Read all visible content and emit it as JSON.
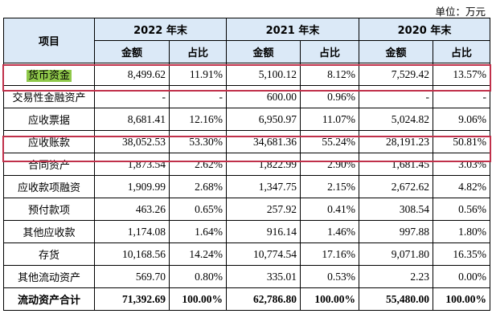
{
  "unit_label": "单位：万元",
  "header": {
    "item": "项目",
    "years": [
      "2022 年末",
      "2021 年末",
      "2020 年末"
    ],
    "amount": "金额",
    "ratio": "占比"
  },
  "rows": [
    {
      "label": "货币资金",
      "v": [
        "8,499.62",
        "11.91%",
        "5,100.12",
        "8.12%",
        "7,529.42",
        "13.57%"
      ]
    },
    {
      "label": "交易性金融资产",
      "v": [
        "-",
        "-",
        "600.00",
        "0.96%",
        "-",
        "-"
      ]
    },
    {
      "label": "应收票据",
      "v": [
        "8,681.41",
        "12.16%",
        "6,950.97",
        "11.07%",
        "5,024.82",
        "9.06%"
      ]
    },
    {
      "label": "应收账款",
      "v": [
        "38,052.53",
        "53.30%",
        "34,681.36",
        "55.24%",
        "28,191.23",
        "50.81%"
      ]
    },
    {
      "label": "合同资产",
      "v": [
        "1,873.54",
        "2.62%",
        "1,822.99",
        "2.90%",
        "1,681.45",
        "3.03%"
      ]
    },
    {
      "label": "应收款项融资",
      "v": [
        "1,909.99",
        "2.68%",
        "1,347.75",
        "2.15%",
        "2,672.62",
        "4.82%"
      ]
    },
    {
      "label": "预付款项",
      "v": [
        "463.26",
        "0.65%",
        "257.92",
        "0.41%",
        "308.54",
        "0.56%"
      ]
    },
    {
      "label": "其他应收款",
      "v": [
        "1,174.08",
        "1.64%",
        "916.14",
        "1.46%",
        "997.88",
        "1.80%"
      ]
    },
    {
      "label": "存货",
      "v": [
        "10,168.56",
        "14.24%",
        "10,774.54",
        "17.16%",
        "9,071.80",
        "16.35%"
      ]
    },
    {
      "label": "其他流动资产",
      "v": [
        "569.70",
        "0.80%",
        "335.01",
        "0.53%",
        "2.23",
        "0.00%"
      ]
    },
    {
      "label": "流动资产合计",
      "v": [
        "71,392.69",
        "100.00%",
        "62,786.80",
        "100.00%",
        "55,480.00",
        "100.00%"
      ]
    }
  ],
  "colors": {
    "header_bg": "#dbe9f7",
    "highlight": "#8fc84a",
    "outline": "#c0304a"
  }
}
